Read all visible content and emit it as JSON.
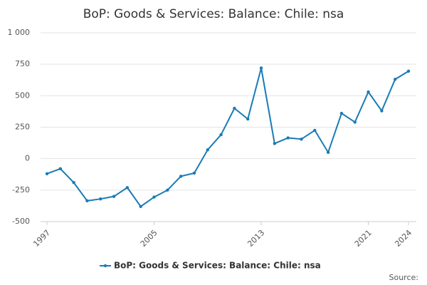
{
  "chart_data": {
    "type": "line",
    "title": "BoP: Goods & Services: Balance: Chile: nsa",
    "x": [
      1997,
      1998,
      1999,
      2000,
      2001,
      2002,
      2003,
      2004,
      2005,
      2006,
      2007,
      2008,
      2009,
      2010,
      2011,
      2012,
      2013,
      2014,
      2015,
      2016,
      2017,
      2018,
      2019,
      2020,
      2021,
      2022,
      2023,
      2024
    ],
    "series": [
      {
        "name": "BoP: Goods & Services: Balance: Chile: nsa",
        "color": "#1a7bb5",
        "values": [
          -120,
          -80,
          -190,
          -335,
          -320,
          -300,
          -230,
          -380,
          -305,
          -250,
          -140,
          -115,
          70,
          190,
          400,
          315,
          720,
          120,
          165,
          155,
          225,
          50,
          360,
          290,
          530,
          380,
          630,
          695
        ]
      }
    ],
    "xlim": [
      1997,
      2024
    ],
    "xticks": [
      1997,
      2005,
      2013,
      2021,
      2024
    ],
    "ylim": [
      -500,
      1000
    ],
    "yticks": [
      -500,
      -250,
      0,
      250,
      500,
      750,
      {
        "value": 1000,
        "label": "1 000"
      }
    ],
    "grid": true,
    "legend": "bottom",
    "source": "Source:"
  }
}
